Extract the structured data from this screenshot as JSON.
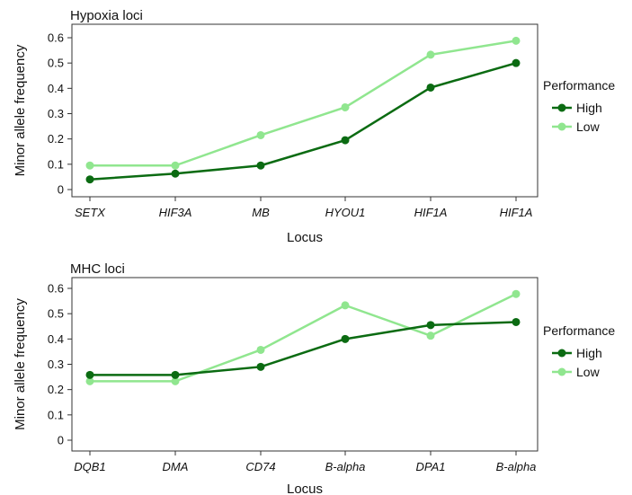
{
  "colors": {
    "High": "#0b6b12",
    "Low": "#90e68f",
    "axis": "#333333"
  },
  "chart_data": [
    {
      "type": "line",
      "title": "Hypoxia loci",
      "xlabel": "Locus",
      "ylabel": "Minor allele frequency",
      "categories": [
        "SETX",
        "HIF3A",
        "MB",
        "HYOU1",
        "HIF1A",
        "HIF1A"
      ],
      "ylim": [
        0,
        0.6
      ],
      "yticks": [
        0,
        0.1,
        0.2,
        0.3,
        0.4,
        0.5,
        0.6
      ],
      "grid": false,
      "legend_title": "Performance",
      "legend_position": "right",
      "series": [
        {
          "name": "High",
          "values": [
            0.04,
            0.063,
            0.095,
            0.195,
            0.403,
            0.5
          ]
        },
        {
          "name": "Low",
          "values": [
            0.095,
            0.095,
            0.215,
            0.325,
            0.533,
            0.588
          ]
        }
      ]
    },
    {
      "type": "line",
      "title": "MHC loci",
      "xlabel": "Locus",
      "ylabel": "Minor allele frequency",
      "categories": [
        "DQB1",
        "DMA",
        "CD74",
        "B-alpha",
        "DPA1",
        "B-alpha"
      ],
      "ylim": [
        0,
        0.6
      ],
      "yticks": [
        0,
        0.1,
        0.2,
        0.3,
        0.4,
        0.5,
        0.6
      ],
      "grid": false,
      "legend_title": "Performance",
      "legend_position": "right",
      "series": [
        {
          "name": "High",
          "values": [
            0.258,
            0.258,
            0.29,
            0.4,
            0.455,
            0.467
          ]
        },
        {
          "name": "Low",
          "values": [
            0.233,
            0.233,
            0.357,
            0.533,
            0.413,
            0.578
          ]
        }
      ]
    }
  ]
}
